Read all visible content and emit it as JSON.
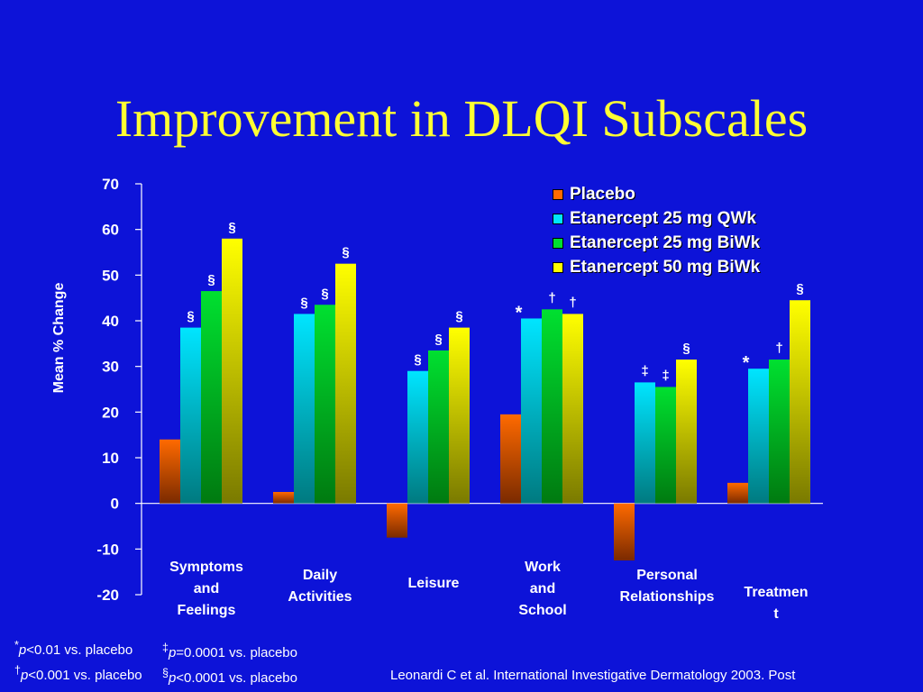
{
  "title": "Improvement in DLQI Subscales",
  "colors": {
    "background": "#0d13d8",
    "title": "#ffff33",
    "placebo": "#ff6a00",
    "etanercept_25_qwk": "#00e5ff",
    "etanercept_25_biwk": "#00e030",
    "etanercept_50_biwk": "#ffff00"
  },
  "chart_data": {
    "type": "bar",
    "title": "Improvement in DLQI Subscales",
    "ylabel": "Mean % Change",
    "xlabel": "",
    "ylim": [
      -20,
      70
    ],
    "yticks": [
      -20,
      -10,
      0,
      10,
      20,
      30,
      40,
      50,
      60,
      70
    ],
    "grid": false,
    "legend_position": "top-right",
    "categories": [
      [
        "Symptoms",
        "and",
        "Feelings"
      ],
      [
        "Daily",
        "Activities"
      ],
      [
        "Leisure"
      ],
      [
        "Work",
        "and",
        "School"
      ],
      [
        "Personal",
        "Relationships"
      ],
      [
        "Treatmen",
        "t"
      ]
    ],
    "series": [
      {
        "name": "Placebo",
        "color": "#ff6a00",
        "values": [
          14,
          2.5,
          -7.5,
          19.5,
          -12.5,
          4.5
        ],
        "marks": [
          "",
          "",
          "",
          "",
          "",
          ""
        ]
      },
      {
        "name": "Etanercept 25 mg QWk",
        "color": "#00e5ff",
        "values": [
          38.5,
          41.5,
          29,
          40.5,
          26.5,
          29.5
        ],
        "marks": [
          "§",
          "§",
          "§",
          "*",
          "‡",
          "*"
        ]
      },
      {
        "name": "Etanercept 25 mg BiWk",
        "color": "#00e030",
        "values": [
          46.5,
          43.5,
          33.5,
          42.5,
          25.5,
          31.5
        ],
        "marks": [
          "§",
          "§",
          "§",
          "†",
          "‡",
          "†"
        ]
      },
      {
        "name": "Etanercept 50 mg BiWk",
        "color": "#ffff00",
        "values": [
          58,
          52.5,
          38.5,
          41.5,
          31.5,
          44.5
        ],
        "marks": [
          "§",
          "§",
          "§",
          "†",
          "§",
          "§"
        ]
      }
    ]
  },
  "footnotes": {
    "line1_sym": "*",
    "line1_p": "p",
    "line1_rest": "<0.01 vs. placebo",
    "line2_sym": "†",
    "line2_p": "p",
    "line2_rest": "<0.001 vs. placebo",
    "line3_sym": "‡",
    "line3_p": "p",
    "line3_rest": "=0.0001 vs. placebo",
    "line4_sym": "§",
    "line4_p": "p",
    "line4_rest": "<0.0001 vs. placebo"
  },
  "citation": "Leonardi C et al. International Investigative Dermatology 2003. Post"
}
